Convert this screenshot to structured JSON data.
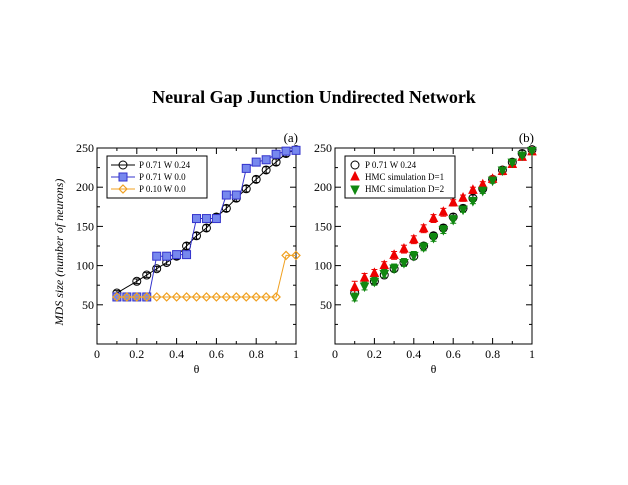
{
  "title": "Neural Gap Junction Undirected Network",
  "chart_data": [
    {
      "type": "line",
      "panel_label": "(a)",
      "xlabel": "θ",
      "ylabel": "MDS size (number of neurons)",
      "xlim": [
        0,
        1
      ],
      "ylim": [
        0,
        250
      ],
      "x_ticks": [
        "0",
        "0.2",
        "0.4",
        "0.6",
        "0.8",
        "1"
      ],
      "y_ticks": [
        "50",
        "100",
        "150",
        "200",
        "250"
      ],
      "legend_position": "top-left",
      "series": [
        {
          "name": "P 0.71 W 0.24",
          "color": "#000000",
          "marker": "circle",
          "x": [
            0.1,
            0.2,
            0.25,
            0.3,
            0.35,
            0.4,
            0.45,
            0.5,
            0.55,
            0.6,
            0.65,
            0.7,
            0.75,
            0.8,
            0.85,
            0.9,
            0.95,
            1.0
          ],
          "y": [
            65,
            80,
            88,
            96,
            104,
            112,
            125,
            138,
            148,
            162,
            173,
            186,
            198,
            210,
            222,
            232,
            243,
            248
          ],
          "err": [
            3,
            3,
            3,
            3,
            3,
            4,
            4,
            4,
            4,
            4,
            4,
            4,
            4,
            4,
            4,
            4,
            4,
            3
          ]
        },
        {
          "name": "P 0.71 W 0.0",
          "color": "#3333cc",
          "fill": "#7788ee",
          "marker": "square",
          "x": [
            0.1,
            0.15,
            0.2,
            0.25,
            0.3,
            0.35,
            0.4,
            0.45,
            0.5,
            0.55,
            0.6,
            0.65,
            0.7,
            0.75,
            0.8,
            0.85,
            0.9,
            0.95,
            1.0
          ],
          "y": [
            60,
            60,
            60,
            60,
            112,
            112,
            114,
            114,
            160,
            160,
            160,
            190,
            190,
            224,
            232,
            235,
            242,
            246,
            247
          ],
          "steps": [
            [
              0.1,
              60
            ],
            [
              0.25,
              60
            ],
            [
              0.26,
              60
            ],
            [
              0.3,
              112
            ],
            [
              0.35,
              112
            ],
            [
              0.37,
              112
            ],
            [
              0.38,
              114
            ],
            [
              0.45,
              114
            ],
            [
              0.46,
              114
            ],
            [
              0.5,
              160
            ],
            [
              0.6,
              160
            ],
            [
              0.61,
              160
            ],
            [
              0.65,
              190
            ],
            [
              0.7,
              190
            ],
            [
              0.72,
              190
            ],
            [
              0.75,
              224
            ],
            [
              0.8,
              232
            ],
            [
              0.85,
              235
            ],
            [
              0.9,
              242
            ],
            [
              0.95,
              246
            ],
            [
              1.0,
              247
            ]
          ]
        },
        {
          "name": "P 0.10 W 0.0",
          "color": "#f0a020",
          "marker": "diamond",
          "x": [
            0.1,
            0.15,
            0.2,
            0.25,
            0.3,
            0.35,
            0.4,
            0.45,
            0.5,
            0.55,
            0.6,
            0.65,
            0.7,
            0.75,
            0.8,
            0.85,
            0.9,
            0.95,
            1.0
          ],
          "y": [
            60,
            60,
            60,
            60,
            60,
            60,
            60,
            60,
            60,
            60,
            60,
            60,
            60,
            60,
            60,
            60,
            60,
            113,
            113
          ]
        }
      ]
    },
    {
      "type": "scatter",
      "panel_label": "(b)",
      "xlabel": "θ",
      "ylabel": "",
      "xlim": [
        0,
        1
      ],
      "ylim": [
        0,
        250
      ],
      "x_ticks": [
        "0",
        "0.2",
        "0.4",
        "0.6",
        "0.8",
        "1"
      ],
      "y_ticks": [
        "50",
        "100",
        "150",
        "200",
        "250"
      ],
      "legend_position": "top-left",
      "series": [
        {
          "name": "P 0.71 W 0.24",
          "color": "#000000",
          "marker": "circle",
          "x": [
            0.1,
            0.2,
            0.25,
            0.3,
            0.35,
            0.4,
            0.45,
            0.5,
            0.55,
            0.6,
            0.65,
            0.7,
            0.75,
            0.8,
            0.85,
            0.9,
            0.95,
            1.0
          ],
          "y": [
            65,
            80,
            88,
            96,
            104,
            112,
            125,
            138,
            148,
            162,
            173,
            186,
            198,
            210,
            222,
            232,
            243,
            248
          ],
          "err": [
            3,
            3,
            3,
            3,
            3,
            4,
            4,
            4,
            4,
            4,
            4,
            4,
            4,
            4,
            4,
            4,
            4,
            3
          ]
        },
        {
          "name": "HMC simulation D=1",
          "color": "#ee0000",
          "marker": "triangle-up",
          "x": [
            0.1,
            0.15,
            0.2,
            0.25,
            0.3,
            0.35,
            0.4,
            0.45,
            0.5,
            0.55,
            0.6,
            0.65,
            0.7,
            0.75,
            0.8,
            0.85,
            0.9,
            0.95,
            1.0
          ],
          "y": [
            72,
            84,
            90,
            100,
            113,
            121,
            133,
            147,
            160,
            168,
            180,
            186,
            196,
            203,
            210,
            220,
            229,
            238,
            245
          ],
          "err": [
            8,
            6,
            5,
            5,
            5,
            5,
            5,
            5,
            5,
            5,
            4,
            4,
            4,
            4,
            4,
            4,
            3,
            3,
            3
          ]
        },
        {
          "name": "HMC simulation D=2",
          "color": "#118811",
          "marker": "triangle-down",
          "x": [
            0.1,
            0.15,
            0.2,
            0.25,
            0.3,
            0.35,
            0.4,
            0.45,
            0.5,
            0.55,
            0.6,
            0.65,
            0.7,
            0.75,
            0.8,
            0.85,
            0.9,
            0.95,
            1.0
          ],
          "y": [
            60,
            74,
            80,
            90,
            97,
            104,
            113,
            124,
            136,
            146,
            159,
            172,
            183,
            196,
            209,
            222,
            232,
            241,
            247
          ],
          "err": [
            5,
            5,
            5,
            5,
            5,
            5,
            5,
            5,
            5,
            5,
            5,
            4,
            4,
            4,
            4,
            3,
            3,
            3,
            3
          ]
        }
      ]
    }
  ]
}
